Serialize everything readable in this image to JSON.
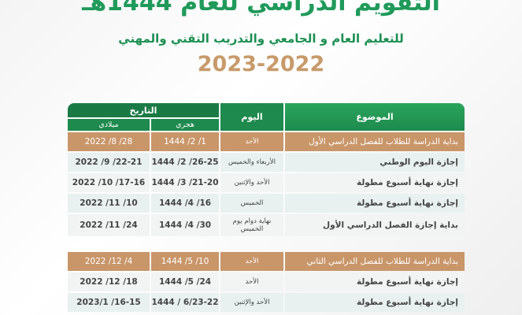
{
  "title": "التقويم الدراسي للعام 1444هـ",
  "subtitle": "للتعليم العام و الجامعي والتدريب التقني والمهني",
  "year": "2023-2022",
  "colors": {
    "green": "#1e8a4e",
    "highlight": "#c9966a",
    "title": "#1f9a5a"
  },
  "header": {
    "topic": "الموضوع",
    "day": "اليوم",
    "date": "التاريخ",
    "hijri": "هجري",
    "gregorian": "ميلادي"
  },
  "rows": [
    {
      "topic": "بداية الدراسة للطلاب للفصل الدراسي الأول",
      "day": "الأحد",
      "hijri": "1444 /2 /1",
      "gregorian": "2022 /8 /28",
      "highlight": true
    },
    {
      "topic": "إجازة اليوم الوطني",
      "day": "الأربعاء والخميس",
      "hijri": "1444 /2 /26-25",
      "gregorian": "2022 /9 /22-21"
    },
    {
      "topic": "إجازة نهاية أسبوع مطولة",
      "day": "الأحد والإثنين",
      "hijri": "1444 /3 /21-20",
      "gregorian": "2022 /10 /17-16"
    },
    {
      "topic": "إجازة نهاية أسبوع مطولة",
      "day": "الخميس",
      "hijri": "1444 /4 /16",
      "gregorian": "2022 /11 /10"
    },
    {
      "topic": "بداية إجازة الفصل الدراسي الأول",
      "day": "نهاية دوام يوم الخميس",
      "hijri": "1444 /4 /30",
      "gregorian": "2022 /11 /24"
    },
    {
      "topic": "بداية الدراسة للطلاب للفصل الدراسي الثاني",
      "day": "الأحد",
      "hijri": "1444 /5 /10",
      "gregorian": "2022 /12 /4",
      "highlight": true
    },
    {
      "topic": "إجازة نهاية أسبوع مطولة",
      "day": "الأحد",
      "hijri": "1444 /5 /24",
      "gregorian": "2022 /12 /18"
    },
    {
      "topic": "إجازة نهاية أسبوع مطولة",
      "day": "الأحد والإثنين",
      "hijri": "1444 / 6/23-22",
      "gregorian": "2023/1 /16-15"
    }
  ]
}
